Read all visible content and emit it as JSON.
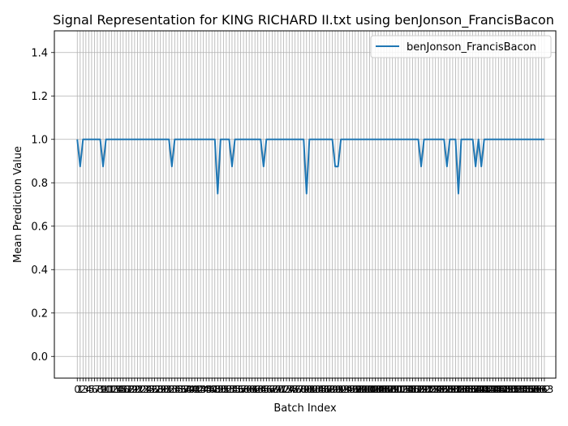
{
  "chart_data": {
    "type": "line",
    "title": "Signal Representation for KING RICHARD II.txt using benJonson_FrancisBacon",
    "xlabel": "Batch Index",
    "ylabel": "Mean Prediction Value",
    "xlim": [
      -8,
      167
    ],
    "ylim": [
      -0.1,
      1.5
    ],
    "yticks": [
      0.0,
      0.2,
      0.4,
      0.6,
      0.8,
      1.0,
      1.2,
      1.4
    ],
    "grid": true,
    "legend_position": "top-right",
    "series": [
      {
        "name": "benJonson_FrancisBacon",
        "color": "#1f77b4",
        "values": [
          1,
          0.875,
          1,
          1,
          1,
          1,
          1,
          1,
          1,
          0.875,
          1,
          1,
          1,
          1,
          1,
          1,
          1,
          1,
          1,
          1,
          1,
          1,
          1,
          1,
          1,
          1,
          1,
          1,
          1,
          1,
          1,
          1,
          1,
          0.875,
          1,
          1,
          1,
          1,
          1,
          1,
          1,
          1,
          1,
          1,
          1,
          1,
          1,
          1,
          1,
          0.75,
          1,
          1,
          1,
          1,
          0.875,
          1,
          1,
          1,
          1,
          1,
          1,
          1,
          1,
          1,
          1,
          0.875,
          1,
          1,
          1,
          1,
          1,
          1,
          1,
          1,
          1,
          1,
          1,
          1,
          1,
          1,
          0.75,
          1,
          1,
          1,
          1,
          1,
          1,
          1,
          1,
          1,
          0.875,
          0.875,
          1,
          1,
          1,
          1,
          1,
          1,
          1,
          1,
          1,
          1,
          1,
          1,
          1,
          1,
          1,
          1,
          1,
          1,
          1,
          1,
          1,
          1,
          1,
          1,
          1,
          1,
          1,
          1,
          0.875,
          1,
          1,
          1,
          1,
          1,
          1,
          1,
          1,
          0.875,
          1,
          1,
          1,
          0.75,
          1,
          1,
          1,
          1,
          1,
          0.875,
          1,
          0.875,
          1,
          1,
          1,
          1,
          1,
          1,
          1,
          1,
          1,
          1,
          1,
          1,
          1,
          1,
          1,
          1,
          1,
          1,
          1,
          1,
          1,
          1
        ]
      }
    ]
  }
}
